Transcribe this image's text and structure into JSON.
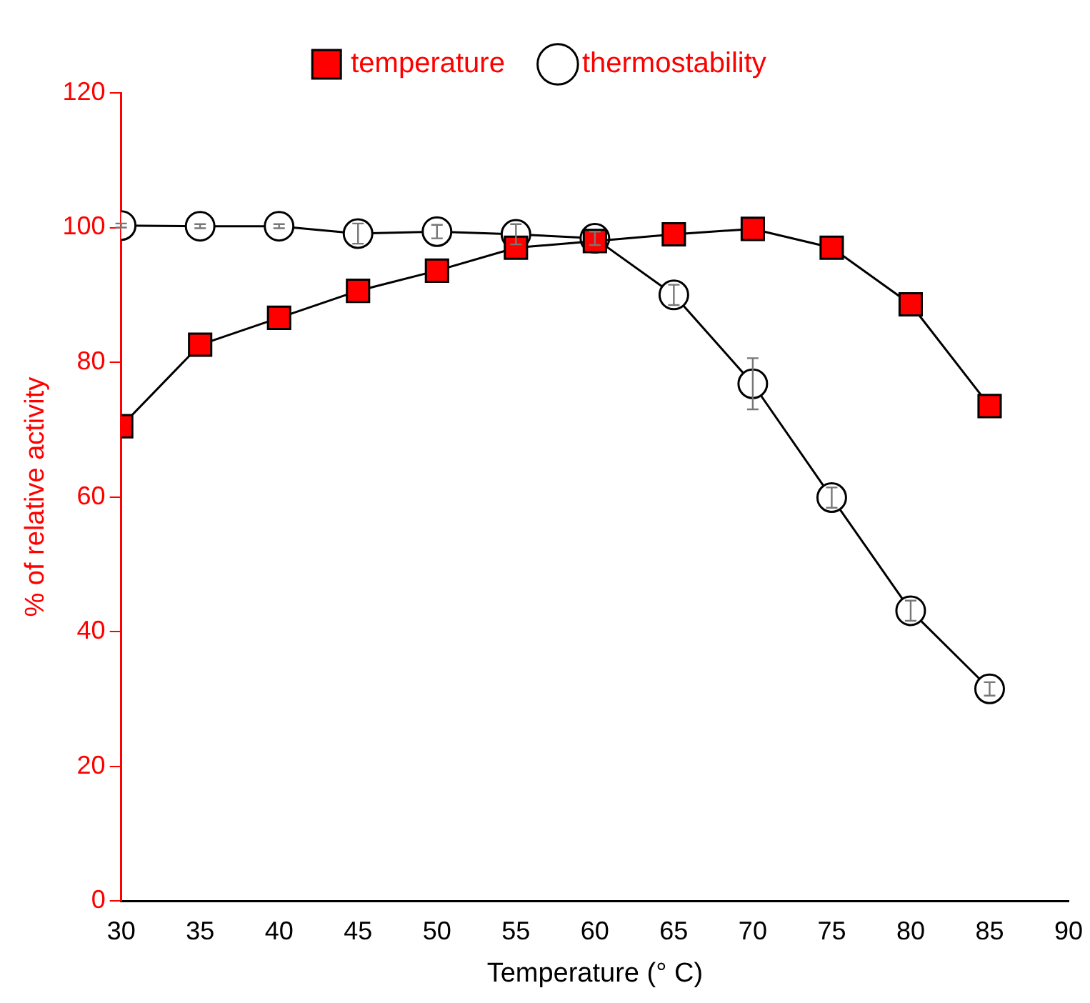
{
  "chart_data": {
    "type": "line",
    "xlabel": "Temperature (° C)",
    "ylabel": "% of relative activity",
    "x": [
      30,
      35,
      40,
      45,
      50,
      55,
      60,
      65,
      70,
      75,
      80,
      85
    ],
    "series": [
      {
        "name": "temperature",
        "color": "#ff0000",
        "marker": "square",
        "values": [
          70.5,
          82.6,
          86.6,
          90.6,
          93.6,
          97.0,
          98.0,
          99.0,
          99.8,
          97.0,
          88.6,
          73.5
        ]
      },
      {
        "name": "thermostability",
        "color": "#000000",
        "marker": "circle",
        "values": [
          100.3,
          100.2,
          100.2,
          99.1,
          99.4,
          99.0,
          98.4,
          90.0,
          76.8,
          59.9,
          43.1,
          31.5
        ],
        "errors": [
          0.3,
          0.3,
          0.3,
          1.5,
          1,
          1.5,
          1,
          1.5,
          3.8,
          1.5,
          1.5,
          1
        ]
      }
    ],
    "xlim": [
      30,
      90
    ],
    "xticks": [
      30,
      35,
      40,
      45,
      50,
      55,
      60,
      65,
      70,
      75,
      80,
      85,
      90
    ],
    "ylim": [
      0,
      120
    ],
    "yticks": [
      0,
      20,
      40,
      60,
      80,
      100,
      120
    ],
    "grid": false,
    "legend": "top",
    "line_style": "solid"
  }
}
